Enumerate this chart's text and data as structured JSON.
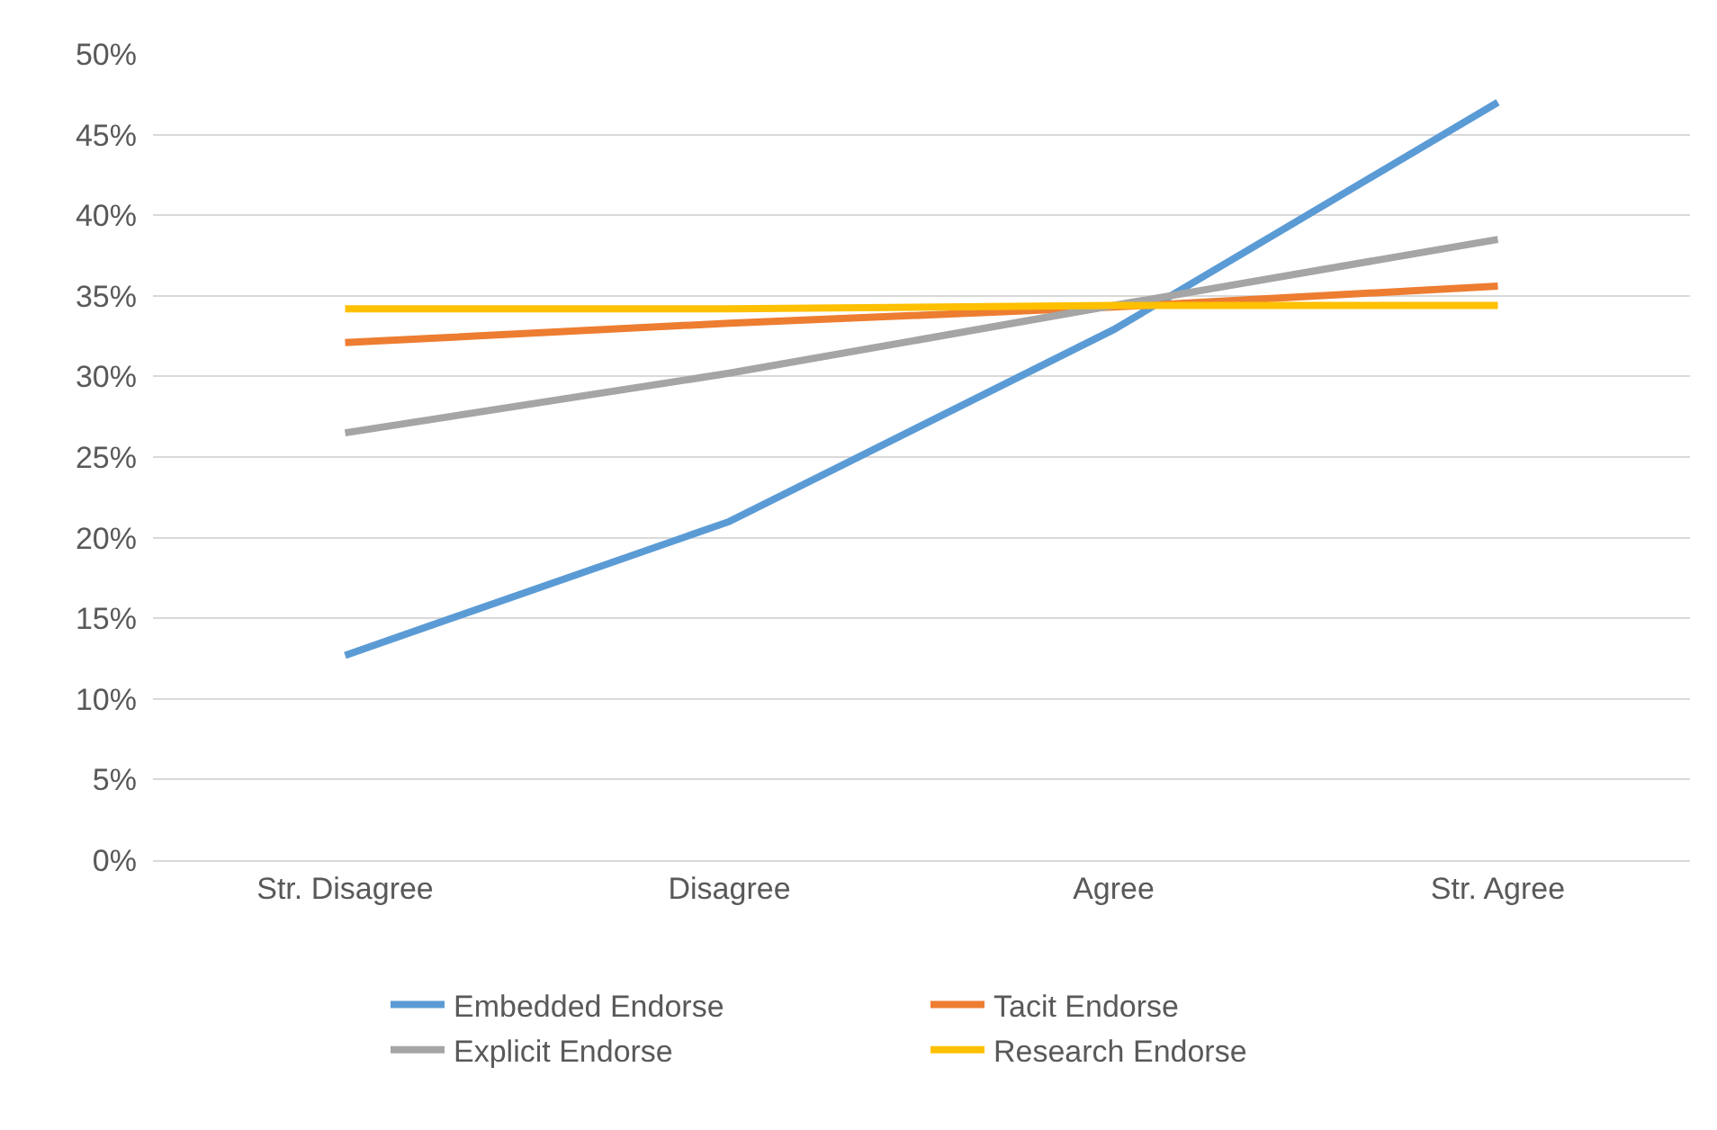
{
  "chart_data": {
    "type": "line",
    "categories": [
      "Str. Disagree",
      "Disagree",
      "Agree",
      "Str. Agree"
    ],
    "series": [
      {
        "name": "Embedded Endorse",
        "color": "#5b9bd5",
        "values": [
          12.7,
          21.0,
          32.9,
          47.0
        ]
      },
      {
        "name": "Tacit Endorse",
        "color": "#ed7d31",
        "values": [
          32.1,
          33.3,
          34.3,
          35.6
        ]
      },
      {
        "name": "Explicit Endorse",
        "color": "#a5a5a5",
        "values": [
          26.5,
          30.2,
          34.4,
          38.5
        ]
      },
      {
        "name": "Research Endorse",
        "color": "#ffc000",
        "values": [
          34.2,
          34.2,
          34.4,
          34.4
        ]
      }
    ],
    "ylim": [
      0,
      50
    ],
    "yticks": [
      {
        "value": 0,
        "label": "0%"
      },
      {
        "value": 5,
        "label": "5%"
      },
      {
        "value": 10,
        "label": "10%"
      },
      {
        "value": 15,
        "label": "15%"
      },
      {
        "value": 20,
        "label": "20%"
      },
      {
        "value": 25,
        "label": "25%"
      },
      {
        "value": 30,
        "label": "30%"
      },
      {
        "value": 35,
        "label": "35%"
      },
      {
        "value": 40,
        "label": "40%"
      },
      {
        "value": 45,
        "label": "45%"
      },
      {
        "value": 50,
        "label": "50%"
      }
    ],
    "grid": "y",
    "legend": "bottom",
    "marker": "none",
    "line_style": "solid"
  }
}
